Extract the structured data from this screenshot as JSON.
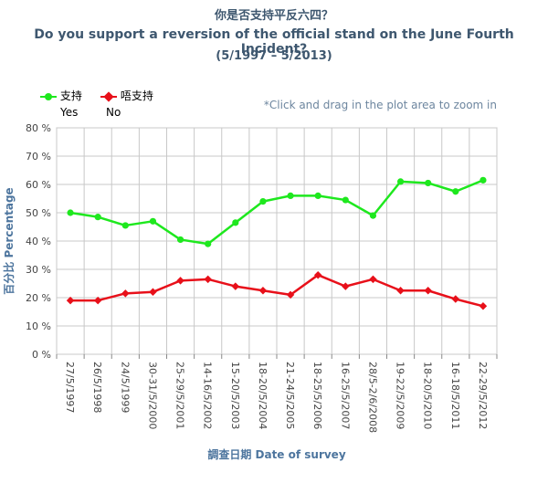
{
  "chart_data": {
    "type": "line",
    "title": "你是否支持平反六四？",
    "subtitle": "Do you support a reversion of the official stand on the June Fourth Incident?",
    "period": "(5/1997 – 5/2013)",
    "zoom_hint": "*Click and drag in the plot area to zoom in",
    "xlabel": "調查日期 Date of survey",
    "ylabel": "百分比 Percentage",
    "ylim": [
      0,
      80
    ],
    "y_ticks": [
      "0 %",
      "10 %",
      "20 %",
      "30 %",
      "40 %",
      "50 %",
      "60 %",
      "70 %",
      "80 %"
    ],
    "grid": true,
    "legend_position": "top-left",
    "categories": [
      "27/5/1997",
      "26/5/1998",
      "24/5/1999",
      "30-31/5/2000",
      "25-29/5/2001",
      "14-16/5/2002",
      "15-20/5/2003",
      "18-20/5/2004",
      "21-24/5/2005",
      "18-25/5/2006",
      "16-25/5/2007",
      "28/5-2/6/2008",
      "19-22/5/2009",
      "18-20/5/2010",
      "16-18/5/2011",
      "22-29/5/2012"
    ],
    "series": [
      {
        "name": "支持",
        "name_en": "Yes",
        "color": "#1ee81e",
        "values": [
          50,
          48.5,
          45.5,
          47,
          40.5,
          39,
          46.5,
          54,
          56,
          56,
          54.5,
          49,
          61,
          60.5,
          57.5,
          61.5
        ]
      },
      {
        "name": "唔支持",
        "name_en": "No",
        "color": "#e8101a",
        "values": [
          19,
          19,
          21.5,
          22,
          26,
          26.5,
          24,
          22.5,
          21,
          28,
          24,
          26.5,
          22.5,
          22.5,
          19.5,
          17
        ]
      }
    ]
  }
}
